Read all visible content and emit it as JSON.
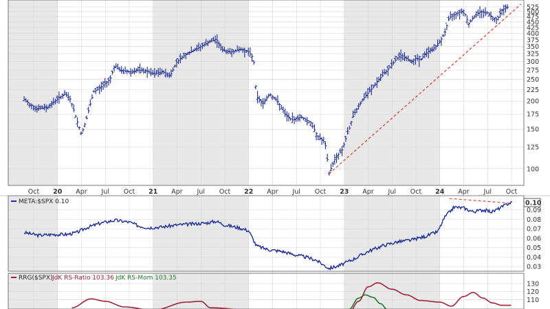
{
  "chart_data": [
    {
      "type": "ohlc",
      "symbol": "META",
      "x_ticks": [
        "Oct",
        "20",
        "Apr",
        "Jul",
        "Oct",
        "21",
        "Apr",
        "Jul",
        "Oct",
        "22",
        "Apr",
        "Jul",
        "Oct",
        "23",
        "Apr",
        "Jul",
        "Oct",
        "24",
        "Apr",
        "Jul",
        "Oct"
      ],
      "y_ticks": [
        100,
        125,
        150,
        175,
        200,
        225,
        250,
        275,
        300,
        325,
        350,
        375,
        400,
        425,
        450,
        475,
        500,
        525
      ],
      "ylim": [
        88,
        540
      ],
      "scale": "log",
      "close_path": [
        [
          2019.65,
          203
        ],
        [
          2019.7,
          195
        ],
        [
          2019.78,
          185
        ],
        [
          2019.9,
          188
        ],
        [
          2020.0,
          205
        ],
        [
          2020.08,
          215
        ],
        [
          2020.13,
          205
        ],
        [
          2020.2,
          165
        ],
        [
          2020.25,
          142
        ],
        [
          2020.3,
          165
        ],
        [
          2020.38,
          220
        ],
        [
          2020.45,
          230
        ],
        [
          2020.55,
          250
        ],
        [
          2020.6,
          290
        ],
        [
          2020.65,
          275
        ],
        [
          2020.75,
          270
        ],
        [
          2020.85,
          275
        ],
        [
          2020.95,
          270
        ],
        [
          2021.0,
          265
        ],
        [
          2021.1,
          270
        ],
        [
          2021.18,
          260
        ],
        [
          2021.25,
          300
        ],
        [
          2021.33,
          320
        ],
        [
          2021.42,
          335
        ],
        [
          2021.5,
          350
        ],
        [
          2021.58,
          365
        ],
        [
          2021.66,
          378
        ],
        [
          2021.72,
          340
        ],
        [
          2021.8,
          330
        ],
        [
          2021.9,
          340
        ],
        [
          2021.97,
          335
        ],
        [
          2022.0,
          330
        ],
        [
          2022.05,
          310
        ],
        [
          2022.08,
          210
        ],
        [
          2022.15,
          195
        ],
        [
          2022.22,
          215
        ],
        [
          2022.3,
          200
        ],
        [
          2022.38,
          175
        ],
        [
          2022.45,
          165
        ],
        [
          2022.55,
          170
        ],
        [
          2022.65,
          160
        ],
        [
          2022.72,
          140
        ],
        [
          2022.8,
          130
        ],
        [
          2022.84,
          95
        ],
        [
          2022.9,
          110
        ],
        [
          2022.98,
          122
        ],
        [
          2023.05,
          150
        ],
        [
          2023.1,
          175
        ],
        [
          2023.2,
          205
        ],
        [
          2023.3,
          230
        ],
        [
          2023.4,
          260
        ],
        [
          2023.5,
          290
        ],
        [
          2023.55,
          310
        ],
        [
          2023.6,
          320
        ],
        [
          2023.7,
          300
        ],
        [
          2023.75,
          310
        ],
        [
          2023.8,
          305
        ],
        [
          2023.85,
          325
        ],
        [
          2023.92,
          340
        ],
        [
          2023.98,
          355
        ],
        [
          2024.05,
          400
        ],
        [
          2024.1,
          470
        ],
        [
          2024.17,
          490
        ],
        [
          2024.25,
          505
        ],
        [
          2024.3,
          440
        ],
        [
          2024.35,
          470
        ],
        [
          2024.42,
          500
        ],
        [
          2024.5,
          495
        ],
        [
          2024.55,
          470
        ],
        [
          2024.6,
          460
        ],
        [
          2024.65,
          510
        ],
        [
          2024.72,
          525
        ]
      ],
      "trendlines": [
        {
          "from": [
            2022.84,
            95
          ],
          "to": [
            2024.85,
            540
          ],
          "color": "#e0382a",
          "style": "dashed"
        }
      ]
    },
    {
      "type": "line",
      "label": "META:$SPX 0.10",
      "last_value": "0.10",
      "y_ticks": [
        0.03,
        0.04,
        0.05,
        0.06,
        0.07,
        0.08,
        0.09
      ],
      "ylim": [
        0.025,
        0.105
      ],
      "series": [
        {
          "color": "#1a2a9a",
          "values": [
            [
              2019.65,
              0.066
            ],
            [
              2019.8,
              0.063
            ],
            [
              2019.95,
              0.064
            ],
            [
              2020.1,
              0.064
            ],
            [
              2020.2,
              0.066
            ],
            [
              2020.3,
              0.071
            ],
            [
              2020.45,
              0.076
            ],
            [
              2020.6,
              0.079
            ],
            [
              2020.75,
              0.077
            ],
            [
              2020.85,
              0.073
            ],
            [
              2020.95,
              0.071
            ],
            [
              2021.1,
              0.072
            ],
            [
              2021.25,
              0.074
            ],
            [
              2021.4,
              0.075
            ],
            [
              2021.55,
              0.076
            ],
            [
              2021.66,
              0.078
            ],
            [
              2021.75,
              0.074
            ],
            [
              2021.9,
              0.071
            ],
            [
              2022.0,
              0.068
            ],
            [
              2022.08,
              0.052
            ],
            [
              2022.2,
              0.048
            ],
            [
              2022.35,
              0.046
            ],
            [
              2022.5,
              0.042
            ],
            [
              2022.6,
              0.04
            ],
            [
              2022.7,
              0.037
            ],
            [
              2022.84,
              0.028
            ],
            [
              2022.95,
              0.031
            ],
            [
              2023.1,
              0.038
            ],
            [
              2023.25,
              0.046
            ],
            [
              2023.4,
              0.052
            ],
            [
              2023.55,
              0.056
            ],
            [
              2023.7,
              0.058
            ],
            [
              2023.85,
              0.062
            ],
            [
              2023.98,
              0.067
            ],
            [
              2024.05,
              0.082
            ],
            [
              2024.15,
              0.093
            ],
            [
              2024.25,
              0.092
            ],
            [
              2024.35,
              0.088
            ],
            [
              2024.45,
              0.09
            ],
            [
              2024.55,
              0.088
            ],
            [
              2024.65,
              0.093
            ],
            [
              2024.72,
              0.097
            ],
            [
              2024.76,
              0.098
            ]
          ]
        }
      ],
      "trendlines": [
        {
          "from": [
            2024.1,
            0.102
          ],
          "to": [
            2024.75,
            0.097
          ],
          "color": "#e0382a",
          "style": "dashed"
        }
      ]
    },
    {
      "type": "line",
      "label_prefix": "RRG($SPX)",
      "y_ticks": [
        100,
        110,
        120,
        130
      ],
      "ylim": [
        95,
        136
      ],
      "series": [
        {
          "name": "JdK RS-Ratio 103.36",
          "color": "#a0203a",
          "values": [
            [
              2020.15,
              100
            ],
            [
              2020.35,
              111
            ],
            [
              2020.5,
              108
            ],
            [
              2020.7,
              101
            ],
            [
              2021.0,
              97
            ],
            [
              2021.35,
              107
            ],
            [
              2021.5,
              108
            ],
            [
              2021.6,
              100
            ],
            [
              2022.1,
              96
            ],
            [
              2022.5,
              90
            ],
            [
              2022.85,
              88
            ],
            [
              2023.05,
              94
            ],
            [
              2023.15,
              108
            ],
            [
              2023.25,
              126
            ],
            [
              2023.35,
              131
            ],
            [
              2023.5,
              123
            ],
            [
              2023.65,
              116
            ],
            [
              2023.8,
              109
            ],
            [
              2024.0,
              107
            ],
            [
              2024.12,
              102
            ],
            [
              2024.25,
              114
            ],
            [
              2024.35,
              119
            ],
            [
              2024.45,
              112
            ],
            [
              2024.55,
              106
            ],
            [
              2024.65,
              103
            ],
            [
              2024.75,
              103
            ]
          ]
        },
        {
          "name": "JdK RS-Mom 103.35",
          "color": "#1e7a2a",
          "values": [
            [
              2022.9,
              90
            ],
            [
              2023.05,
              98
            ],
            [
              2023.15,
              112
            ],
            [
              2023.22,
              116
            ],
            [
              2023.3,
              113
            ],
            [
              2023.38,
              105
            ],
            [
              2023.45,
              98
            ],
            [
              2023.6,
              93
            ]
          ]
        }
      ]
    }
  ]
}
